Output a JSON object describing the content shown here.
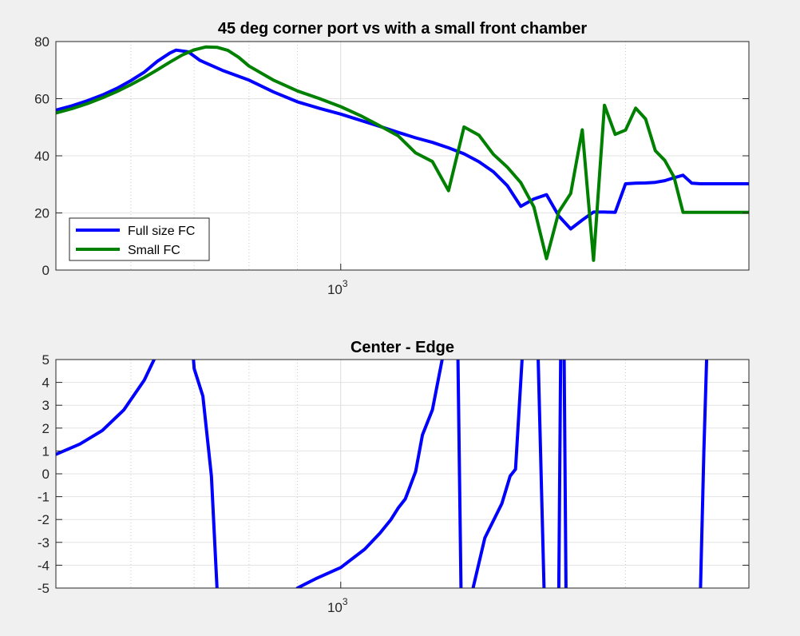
{
  "chart_data": [
    {
      "type": "line",
      "title": "45 deg corner port vs with a small front chamber",
      "xscale": "log",
      "xlim": [
        500,
        2700
      ],
      "ylim": [
        0,
        80
      ],
      "xticks": [
        {
          "value": 1000,
          "base": "10",
          "exponent": "3"
        }
      ],
      "yticks": [
        0,
        20,
        40,
        60,
        80
      ],
      "x_minor_grid": [
        600,
        700,
        800,
        900,
        2000
      ],
      "grid": "on",
      "legend": {
        "location": "bottom-left",
        "entries": [
          "Full size FC",
          "Small FC"
        ]
      },
      "series": [
        {
          "name": "Full size FC",
          "color": "#0000ff",
          "x": [
            500,
            520,
            540,
            560,
            580,
            600,
            620,
            640,
            660,
            670,
            690,
            710,
            750,
            800,
            850,
            900,
            950,
            1000,
            1050,
            1100,
            1150,
            1200,
            1250,
            1300,
            1350,
            1400,
            1450,
            1500,
            1550,
            1600,
            1650,
            1700,
            1750,
            1800,
            1850,
            1900,
            1950,
            2000,
            2050,
            2100,
            2150,
            2200,
            2250,
            2300,
            2350,
            2400,
            2450,
            2500,
            2550,
            2600,
            2650,
            2700
          ],
          "y": [
            56,
            57.5,
            59.3,
            61.3,
            63.6,
            66.3,
            69.3,
            73.1,
            76,
            77,
            76.4,
            73.4,
            69.9,
            66.5,
            62.3,
            58.9,
            56.6,
            54.6,
            52.4,
            50.3,
            48.2,
            46.3,
            44.7,
            42.8,
            40.7,
            37.9,
            34.4,
            29.5,
            22.3,
            24.9,
            26.4,
            18.9,
            14.4,
            17.5,
            20.3,
            20.3,
            20.2,
            30.2,
            30.4,
            30.5,
            30.7,
            31.3,
            32.3,
            33.2,
            30.4,
            30.2,
            30.2,
            30.2,
            30.2,
            30.2,
            30.2,
            30.2
          ]
        },
        {
          "name": "Small FC",
          "color": "#008000",
          "x": [
            500,
            520,
            540,
            560,
            580,
            600,
            620,
            640,
            660,
            680,
            700,
            720,
            740,
            760,
            780,
            800,
            850,
            900,
            950,
            1000,
            1050,
            1100,
            1150,
            1200,
            1250,
            1300,
            1350,
            1400,
            1450,
            1500,
            1550,
            1600,
            1650,
            1700,
            1750,
            1800,
            1850,
            1900,
            1950,
            2000,
            2050,
            2100,
            2150,
            2200,
            2250,
            2300,
            2350,
            2400,
            2450,
            2500,
            2550,
            2600,
            2650,
            2700
          ],
          "y": [
            55,
            56.5,
            58.3,
            60.3,
            62.5,
            64.9,
            67.4,
            70.1,
            72.8,
            75.3,
            77.1,
            78.1,
            78,
            76.9,
            74.5,
            71.4,
            66.4,
            62.7,
            60,
            57.2,
            54,
            50.5,
            47,
            41,
            38,
            27.8,
            50.1,
            47.2,
            40.5,
            36,
            30.6,
            22.1,
            4,
            20.4,
            26.8,
            49.1,
            3.4,
            57.7,
            47.5,
            49,
            56.7,
            52.9,
            41.8,
            38.4,
            32.6,
            20.2,
            20.2,
            20.2,
            20.2,
            20.2,
            20.2,
            20.2,
            20.2,
            20.2
          ]
        }
      ]
    },
    {
      "type": "line",
      "title": "Center - Edge",
      "xscale": "log",
      "xlim": [
        500,
        2700
      ],
      "ylim": [
        -5,
        5
      ],
      "xticks": [
        {
          "value": 1000,
          "base": "10",
          "exponent": "3"
        }
      ],
      "yticks": [
        5,
        4,
        3,
        2,
        1,
        0,
        -1,
        -2,
        -3,
        -4,
        -5
      ],
      "x_minor_grid": [
        600,
        700,
        800,
        900,
        2000
      ],
      "grid": "on",
      "series": [
        {
          "color": "#0000ff",
          "segments": [
            {
              "x": [
                500,
                530,
                560,
                590,
                620,
                640,
                660,
                670
              ],
              "y": [
                0.85,
                1.3,
                1.9,
                2.8,
                4.1,
                5.3,
                7,
                8
              ]
            },
            {
              "x": [
                690,
                700,
                715,
                730,
                740
              ],
              "y": [
                8,
                4.6,
                3.4,
                -0.1,
                -5
              ]
            },
            {
              "x": [
                900,
                940,
                1000,
                1060,
                1100,
                1130,
                1150,
                1170,
                1180,
                1200
              ],
              "y": [
                -5,
                -4.6,
                -4.1,
                -3.3,
                -2.6,
                -2.0,
                -1.5,
                -1.1,
                -0.7,
                0.1
              ]
            },
            {
              "x": [
                1200,
                1220,
                1250,
                1280,
                1300
              ],
              "y": [
                0.1,
                1.7,
                2.8,
                5,
                8
              ]
            },
            {
              "x": [
                1320,
                1330,
                1340
              ],
              "y": [
                8,
                5,
                -5
              ]
            },
            {
              "x": [
                1380,
                1420,
                1480,
                1510,
                1530,
                1560,
                1570
              ],
              "y": [
                -5,
                -2.8,
                -1.3,
                -0.1,
                0.2,
                6,
                8
              ]
            },
            {
              "x": [
                1610,
                1640
              ],
              "y": [
                8,
                -5
              ]
            },
            {
              "x": [
                1700,
                1710,
                1720,
                1730
              ],
              "y": [
                -5,
                8,
                8,
                -5
              ]
            },
            {
              "x": [
                2400,
                2420,
                2440,
                2460
              ],
              "y": [
                -5,
                1,
                6,
                8
              ]
            }
          ]
        }
      ]
    }
  ]
}
